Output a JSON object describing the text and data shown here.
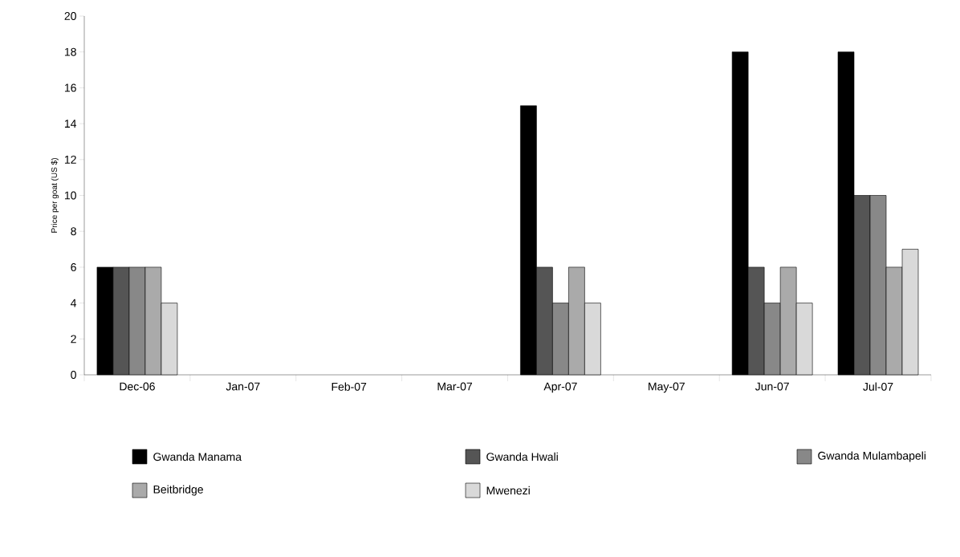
{
  "chart_data": {
    "type": "bar",
    "ylabel": "Price per goat (US $)",
    "categories": [
      "Dec-06",
      "Jan-07",
      "Feb-07",
      "Mar-07",
      "Apr-07",
      "May-07",
      "Jun-07",
      "Jul-07"
    ],
    "series": [
      {
        "name": "Gwanda Manama",
        "color": "#000000",
        "values": [
          6,
          null,
          null,
          null,
          15,
          null,
          18,
          18
        ]
      },
      {
        "name": "Gwanda Hwali",
        "color": "#555555",
        "values": [
          6,
          null,
          null,
          null,
          6,
          null,
          6,
          10
        ]
      },
      {
        "name": "Gwanda Mulambapeli",
        "color": "#888888",
        "values": [
          6,
          null,
          null,
          null,
          4,
          null,
          4,
          10
        ]
      },
      {
        "name": "Beitbridge",
        "color": "#aaaaaa",
        "values": [
          6,
          null,
          null,
          null,
          6,
          null,
          6,
          6
        ]
      },
      {
        "name": "Mwenezi",
        "color": "#d9d9d9",
        "values": [
          4,
          null,
          null,
          null,
          4,
          null,
          4,
          7
        ]
      }
    ],
    "ylim": [
      0,
      20
    ],
    "yticks": [
      0,
      2,
      4,
      6,
      8,
      10,
      12,
      14,
      16,
      18,
      20
    ],
    "grid": false,
    "legend": "bottom"
  }
}
